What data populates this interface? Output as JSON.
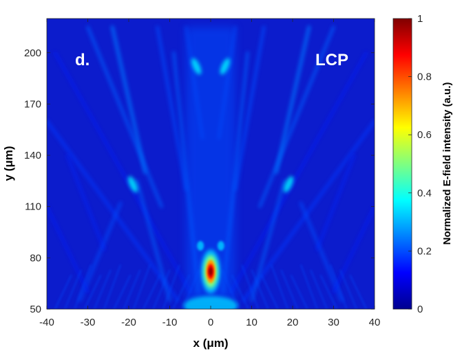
{
  "chart_data": {
    "type": "heatmap",
    "title": "",
    "xlabel": "x (μm)",
    "ylabel": "y (μm)",
    "x_ticks": [
      -40,
      -30,
      -20,
      -10,
      0,
      10,
      20,
      30,
      40
    ],
    "y_ticks": [
      50,
      80,
      110,
      140,
      170,
      200
    ],
    "xlim": [
      -40,
      40
    ],
    "ylim": [
      50,
      220
    ],
    "colorbar": {
      "label": "Normalized E-field intensity (a.u.)",
      "colormap": "jet",
      "range": [
        0,
        1
      ],
      "ticks": [
        0,
        0.2,
        0.4,
        0.6,
        0.8,
        1
      ]
    },
    "annotations": [
      "d.",
      "LCP"
    ],
    "features": [
      {
        "kind": "focal-spot",
        "x": 0,
        "y": 72,
        "peak_intensity": 1.0
      },
      {
        "kind": "side-lobe",
        "x": -2.5,
        "y": 87,
        "intensity": 0.3
      },
      {
        "kind": "side-lobe",
        "x": 2.5,
        "y": 87,
        "intensity": 0.3
      },
      {
        "kind": "bright-streak",
        "x": -19,
        "y": 123,
        "intensity": 0.35
      },
      {
        "kind": "bright-streak",
        "x": 19,
        "y": 123,
        "intensity": 0.35
      },
      {
        "kind": "bright-streak",
        "x": -3.5,
        "y": 192,
        "intensity": 0.35
      },
      {
        "kind": "bright-streak",
        "x": 3.5,
        "y": 192,
        "intensity": 0.35
      }
    ]
  }
}
